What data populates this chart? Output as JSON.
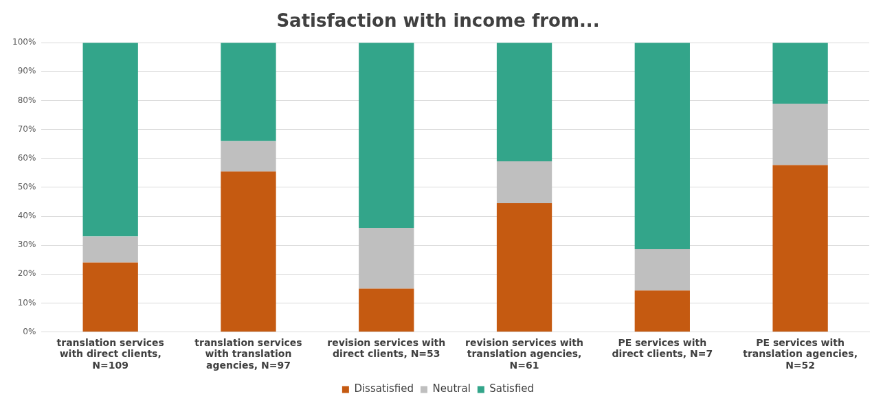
{
  "chart_data": {
    "type": "bar",
    "title": "Satisfaction with income from...",
    "stacked": true,
    "categories": [
      "translation services with direct clients, N=109",
      "translation services with translation agencies, N=97",
      "revision services with direct clients, N=53",
      "revision services with translation agencies, N=61",
      "PE services with direct clients, N=7",
      "PE services with translation agencies, N=52"
    ],
    "series": [
      {
        "name": "Dissatisfied",
        "color": "#c55a11",
        "values": [
          24,
          55.5,
          15,
          44.5,
          14.3,
          57.7
        ]
      },
      {
        "name": "Neutral",
        "color": "#bfbfbf",
        "values": [
          9,
          10.5,
          21,
          14.5,
          14.3,
          21.2
        ]
      },
      {
        "name": "Satisfied",
        "color": "#33a58a",
        "values": [
          67,
          34,
          64,
          41,
          71.4,
          21.1
        ]
      }
    ],
    "ylim": [
      0,
      100
    ],
    "yticks": [
      {
        "value": 0,
        "label": "0%"
      },
      {
        "value": 10,
        "label": "10%"
      },
      {
        "value": 20,
        "label": "20%"
      },
      {
        "value": 30,
        "label": "30%"
      },
      {
        "value": 40,
        "label": "40%"
      },
      {
        "value": 50,
        "label": "50%"
      },
      {
        "value": 60,
        "label": "60%"
      },
      {
        "value": 70,
        "label": "70%"
      },
      {
        "value": 80,
        "label": "80%"
      },
      {
        "value": 90,
        "label": "90%"
      },
      {
        "value": 100,
        "label": "100%"
      }
    ],
    "grid": "y",
    "legend": "bottom"
  }
}
